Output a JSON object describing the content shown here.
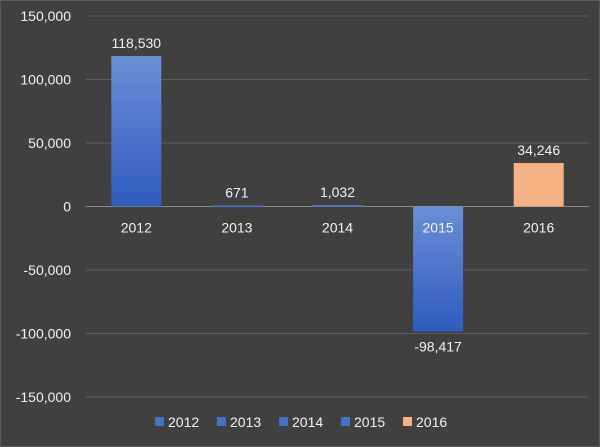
{
  "chart_data": {
    "type": "bar",
    "title": "",
    "xlabel": "",
    "ylabel": "",
    "ylim": [
      -150000,
      150000
    ],
    "yticks": [
      150000,
      100000,
      50000,
      0,
      -50000,
      -100000,
      -150000
    ],
    "ytick_labels": [
      "150,000",
      "100,000",
      "50,000",
      "0",
      "-50,000",
      "-100,000",
      "-150,000"
    ],
    "categories": [
      "2012",
      "2013",
      "2014",
      "2015",
      "2016"
    ],
    "values": [
      118530,
      671,
      1032,
      -98417,
      34246
    ],
    "data_labels": [
      "118,530",
      "671",
      "1,032",
      "-98,417",
      "34,246"
    ],
    "colors": [
      "#4472c4",
      "#4472c4",
      "#4472c4",
      "#4472c4",
      "#f4b183"
    ],
    "grid": true,
    "legend": {
      "position": "bottom",
      "entries": [
        {
          "label": "2012",
          "color": "#4472c4"
        },
        {
          "label": "2013",
          "color": "#4472c4"
        },
        {
          "label": "2014",
          "color": "#4472c4"
        },
        {
          "label": "2015",
          "color": "#4472c4"
        },
        {
          "label": "2016",
          "color": "#f4b183"
        }
      ]
    }
  }
}
